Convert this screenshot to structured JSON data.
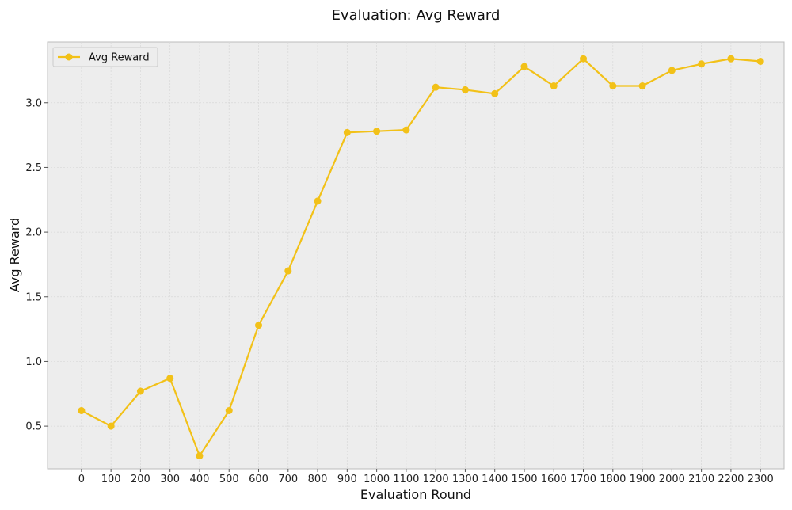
{
  "chart_data": {
    "type": "line",
    "title": "Evaluation: Avg Reward",
    "xlabel": "Evaluation Round",
    "ylabel": "Avg Reward",
    "x": [
      0,
      100,
      200,
      300,
      400,
      500,
      600,
      700,
      800,
      900,
      1000,
      1100,
      1200,
      1300,
      1400,
      1500,
      1600,
      1700,
      1800,
      1900,
      2000,
      2100,
      2200,
      2300
    ],
    "x_tick_labels": [
      "0",
      "100",
      "200",
      "300",
      "400",
      "500",
      "600",
      "700",
      "800",
      "900",
      "1000",
      "1100",
      "1200",
      "1300",
      "1400",
      "1500",
      "1600",
      "1700",
      "1800",
      "1900",
      "2000",
      "2100",
      "2200",
      "2300"
    ],
    "y_ticks": [
      0.5,
      1.0,
      1.5,
      2.0,
      2.5,
      3.0
    ],
    "y_tick_labels": [
      "0.5",
      "1.0",
      "1.5",
      "2.0",
      "2.5",
      "3.0"
    ],
    "xlim": [
      -115,
      2380
    ],
    "ylim": [
      0.17,
      3.47
    ],
    "grid": true,
    "legend_position": "top-left",
    "series": [
      {
        "name": "Avg Reward",
        "color": "#f2c118",
        "marker": "circle",
        "values": [
          0.62,
          0.5,
          0.77,
          0.87,
          0.27,
          0.62,
          1.28,
          1.7,
          2.24,
          2.77,
          2.78,
          2.79,
          3.12,
          3.1,
          3.07,
          3.28,
          3.13,
          3.34,
          3.13,
          3.13,
          3.25,
          3.3,
          3.34,
          3.32
        ]
      }
    ],
    "colors": {
      "plot_background": "#ededed",
      "grid": "#d8d8d8",
      "axes_border": "#bcbcbc"
    }
  }
}
